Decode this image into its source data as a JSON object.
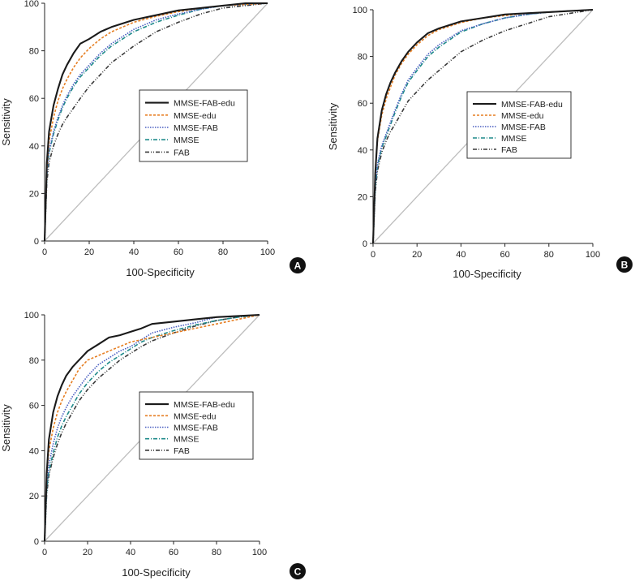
{
  "figure": {
    "xlabel": "100-Specificity",
    "ylabel": "Sensitivity"
  },
  "series_styles": [
    {
      "name": "MMSE-FAB-edu",
      "color": "#1a1a1a",
      "dash": "",
      "width": 2.1
    },
    {
      "name": "MMSE-edu",
      "color": "#e67e22",
      "dash": "3,2",
      "width": 1.6
    },
    {
      "name": "MMSE-FAB",
      "color": "#4a5fc1",
      "dash": "1.5,1.5",
      "width": 1.6
    },
    {
      "name": "MMSE",
      "color": "#1f8a8a",
      "dash": "5,2,1,2",
      "width": 1.6
    },
    {
      "name": "FAB",
      "color": "#3a3a3a",
      "dash": "5,2,1,2,1,2",
      "width": 1.6
    }
  ],
  "chart_data": [
    {
      "type": "line",
      "panel_label": "A",
      "xlabel": "100-Specificity",
      "ylabel": "Sensitivity",
      "xlim": [
        0,
        100
      ],
      "ylim": [
        0,
        100
      ],
      "xticks": [
        0,
        20,
        40,
        60,
        80,
        100
      ],
      "yticks": [
        0,
        20,
        40,
        60,
        80,
        100
      ],
      "legend": [
        "MMSE-FAB-edu",
        "MMSE-edu",
        "MMSE-FAB",
        "MMSE",
        "FAB"
      ],
      "reference_line": [
        [
          0,
          0
        ],
        [
          100,
          100
        ]
      ],
      "series": [
        {
          "name": "MMSE-FAB-edu",
          "x": [
            0,
            1,
            2,
            4,
            6,
            8,
            10,
            13,
            16,
            20,
            25,
            30,
            40,
            50,
            60,
            70,
            80,
            90,
            100
          ],
          "y": [
            0,
            33,
            46,
            57,
            64,
            70,
            74,
            79,
            83,
            85,
            88,
            90,
            93,
            95,
            97,
            98,
            99,
            100,
            100
          ]
        },
        {
          "name": "MMSE-edu",
          "x": [
            0,
            1,
            2,
            4,
            6,
            8,
            10,
            13,
            16,
            20,
            25,
            30,
            40,
            50,
            60,
            70,
            80,
            90,
            100
          ],
          "y": [
            0,
            30,
            42,
            52,
            59,
            64,
            68,
            73,
            77,
            81,
            85,
            88,
            92,
            94.5,
            96.5,
            98,
            99,
            99.5,
            100
          ]
        },
        {
          "name": "MMSE-FAB",
          "x": [
            0,
            1,
            2,
            4,
            6,
            8,
            10,
            13,
            16,
            20,
            25,
            30,
            40,
            50,
            60,
            70,
            80,
            90,
            100
          ],
          "y": [
            0,
            28,
            38,
            46,
            52,
            57,
            61,
            66,
            70,
            74,
            79,
            83,
            89,
            93,
            95.5,
            97.5,
            99,
            99.5,
            100
          ]
        },
        {
          "name": "MMSE",
          "x": [
            0,
            1,
            2,
            4,
            6,
            8,
            10,
            13,
            16,
            20,
            25,
            30,
            40,
            50,
            60,
            70,
            80,
            90,
            100
          ],
          "y": [
            0,
            28,
            37,
            45,
            51,
            56,
            60,
            65,
            69,
            73,
            78,
            82,
            88,
            92,
            95,
            97.5,
            99,
            99.5,
            100
          ]
        },
        {
          "name": "FAB",
          "x": [
            0,
            1,
            2,
            4,
            6,
            8,
            10,
            13,
            16,
            20,
            25,
            30,
            40,
            50,
            60,
            70,
            80,
            90,
            100
          ],
          "y": [
            0,
            25,
            33,
            40,
            45,
            49,
            52,
            56,
            60,
            65,
            70,
            75,
            82,
            88,
            92,
            95.5,
            98,
            99,
            100
          ]
        }
      ]
    },
    {
      "type": "line",
      "panel_label": "B",
      "xlabel": "100-Specificity",
      "ylabel": "Sensitivity",
      "xlim": [
        0,
        100
      ],
      "ylim": [
        0,
        100
      ],
      "xticks": [
        0,
        20,
        40,
        60,
        80,
        100
      ],
      "yticks": [
        0,
        20,
        40,
        60,
        80,
        100
      ],
      "legend": [
        "MMSE-FAB-edu",
        "MMSE-edu",
        "MMSE-FAB",
        "MMSE",
        "FAB"
      ],
      "reference_line": [
        [
          0,
          0
        ],
        [
          100,
          100
        ]
      ],
      "series": [
        {
          "name": "MMSE-FAB-edu",
          "x": [
            0,
            1,
            2,
            4,
            6,
            8,
            10,
            13,
            16,
            20,
            25,
            30,
            40,
            50,
            60,
            70,
            80,
            90,
            100
          ],
          "y": [
            0,
            30,
            45,
            57,
            64,
            69,
            73,
            78,
            82,
            86,
            90,
            92,
            95,
            96.5,
            98,
            98.5,
            99,
            99.5,
            100
          ]
        },
        {
          "name": "MMSE-edu",
          "x": [
            0,
            1,
            2,
            4,
            6,
            8,
            10,
            13,
            16,
            20,
            25,
            30,
            40,
            50,
            60,
            70,
            80,
            90,
            100
          ],
          "y": [
            0,
            30,
            44,
            55,
            62,
            67,
            72,
            77,
            81,
            85,
            89,
            91.5,
            94.5,
            96.5,
            97.5,
            98.5,
            99,
            99.5,
            100
          ]
        },
        {
          "name": "MMSE-FAB",
          "x": [
            0,
            1,
            2,
            4,
            6,
            8,
            10,
            13,
            16,
            20,
            25,
            30,
            40,
            50,
            60,
            70,
            80,
            90,
            100
          ],
          "y": [
            0,
            25,
            34,
            42,
            47,
            52,
            57,
            64,
            70,
            75,
            81,
            85,
            91,
            94,
            96.5,
            98,
            99,
            99.5,
            100
          ]
        },
        {
          "name": "MMSE",
          "x": [
            0,
            1,
            2,
            4,
            6,
            8,
            10,
            13,
            16,
            20,
            25,
            30,
            40,
            50,
            60,
            70,
            80,
            90,
            100
          ],
          "y": [
            0,
            24,
            33,
            41,
            46,
            51,
            56,
            63,
            69,
            74,
            80,
            84,
            90.5,
            94,
            96.5,
            98,
            99,
            99.5,
            100
          ]
        },
        {
          "name": "FAB",
          "x": [
            0,
            1,
            2,
            4,
            6,
            8,
            10,
            13,
            16,
            20,
            25,
            30,
            40,
            50,
            60,
            70,
            80,
            90,
            100
          ],
          "y": [
            0,
            22,
            31,
            39,
            44,
            48,
            51,
            56,
            61,
            65,
            70,
            74,
            82,
            87,
            91,
            94,
            97,
            98.5,
            100
          ]
        }
      ]
    },
    {
      "type": "line",
      "panel_label": "C",
      "xlabel": "100-Specificity",
      "ylabel": "Sensitivity",
      "xlim": [
        0,
        100
      ],
      "ylim": [
        0,
        100
      ],
      "xticks": [
        0,
        20,
        40,
        60,
        80,
        100
      ],
      "yticks": [
        0,
        20,
        40,
        60,
        80,
        100
      ],
      "legend": [
        "MMSE-FAB-edu",
        "MMSE-edu",
        "MMSE-FAB",
        "MMSE",
        "FAB"
      ],
      "reference_line": [
        [
          0,
          0
        ],
        [
          100,
          100
        ]
      ],
      "series": [
        {
          "name": "MMSE-FAB-edu",
          "x": [
            0,
            1,
            2,
            4,
            6,
            8,
            10,
            13,
            16,
            20,
            25,
            30,
            35,
            40,
            45,
            50,
            60,
            70,
            80,
            90,
            100
          ],
          "y": [
            0,
            30,
            45,
            57,
            64,
            69,
            73,
            77,
            80,
            84,
            87,
            90,
            91,
            92.5,
            94,
            96,
            97,
            98,
            99,
            99.5,
            100
          ]
        },
        {
          "name": "MMSE-edu",
          "x": [
            0,
            1,
            2,
            4,
            6,
            8,
            10,
            13,
            16,
            20,
            25,
            30,
            35,
            40,
            45,
            50,
            60,
            70,
            80,
            90,
            100
          ],
          "y": [
            0,
            30,
            40,
            50,
            57,
            62,
            66,
            71,
            76,
            80,
            82,
            84,
            86,
            88,
            89,
            90,
            92,
            94,
            96,
            98,
            100
          ]
        },
        {
          "name": "MMSE-FAB",
          "x": [
            0,
            1,
            2,
            4,
            6,
            8,
            10,
            13,
            16,
            20,
            25,
            30,
            35,
            40,
            45,
            50,
            60,
            70,
            80,
            90,
            100
          ],
          "y": [
            0,
            25,
            34,
            43,
            50,
            55,
            59,
            64,
            68,
            73,
            78,
            81,
            84,
            86,
            89,
            92,
            94.5,
            96.5,
            99,
            99.5,
            100
          ]
        },
        {
          "name": "MMSE",
          "x": [
            0,
            1,
            2,
            4,
            6,
            8,
            10,
            13,
            16,
            20,
            25,
            30,
            35,
            40,
            45,
            50,
            60,
            70,
            80,
            90,
            100
          ],
          "y": [
            0,
            23,
            31,
            39,
            46,
            51,
            55,
            60,
            65,
            70,
            75,
            79,
            82,
            85,
            88,
            90,
            93,
            95.5,
            97.5,
            99,
            100
          ]
        },
        {
          "name": "FAB",
          "x": [
            0,
            1,
            2,
            4,
            6,
            8,
            10,
            13,
            16,
            20,
            25,
            30,
            35,
            40,
            45,
            50,
            60,
            70,
            80,
            90,
            100
          ],
          "y": [
            0,
            21,
            29,
            37,
            43,
            48,
            52,
            57,
            62,
            67,
            72,
            76,
            80,
            83,
            86,
            88.5,
            92,
            95,
            97.5,
            99,
            100
          ]
        }
      ]
    }
  ]
}
